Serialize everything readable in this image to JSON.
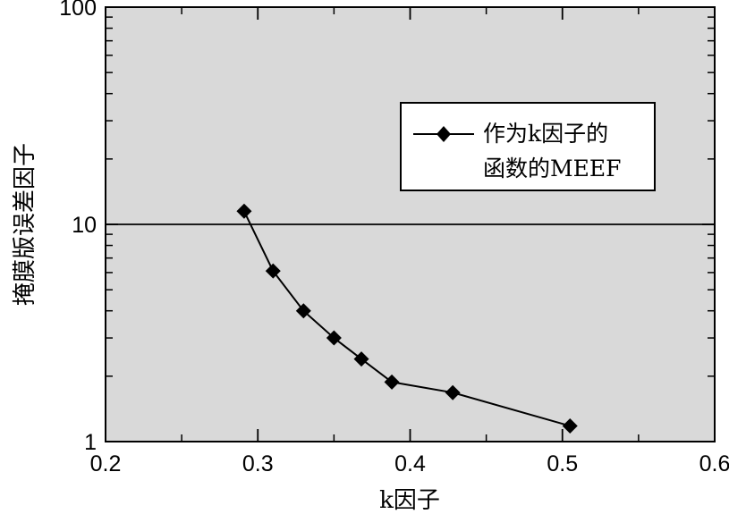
{
  "chart_data": {
    "type": "line",
    "xlabel": "k因子",
    "ylabel": "掩膜版误差因子",
    "xlim": [
      0.2,
      0.6
    ],
    "ylim": [
      1,
      100
    ],
    "yscale": "log",
    "x_ticks": [
      "0.2",
      "0.3",
      "0.4",
      "0.5",
      "0.6"
    ],
    "y_ticks": [
      "1",
      "10",
      "100"
    ],
    "grid": false,
    "reference_line": 10,
    "background": "#d9d9d9",
    "legend": {
      "placement": "right",
      "lines": [
        "作为k因子的",
        "函数的MEEF"
      ]
    },
    "series": [
      {
        "name": "作为k因子的函数的MEEF",
        "marker": "diamond",
        "color": "#000000",
        "x": [
          0.291,
          0.31,
          0.33,
          0.35,
          0.368,
          0.388,
          0.428,
          0.505
        ],
        "y": [
          11.5,
          6.1,
          4.0,
          3.0,
          2.4,
          1.88,
          1.68,
          1.18
        ]
      }
    ]
  }
}
